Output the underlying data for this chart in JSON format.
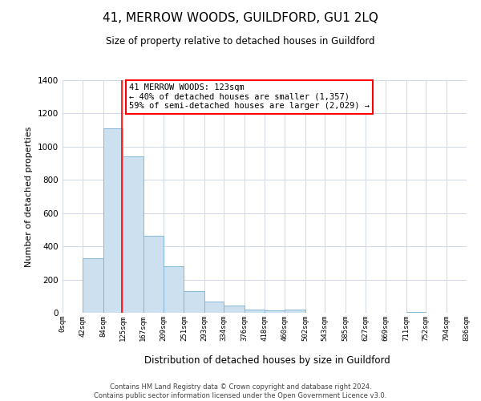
{
  "title": "41, MERROW WOODS, GUILDFORD, GU1 2LQ",
  "subtitle": "Size of property relative to detached houses in Guildford",
  "xlabel": "Distribution of detached houses by size in Guildford",
  "ylabel": "Number of detached properties",
  "bar_left_edges": [
    0,
    42,
    84,
    125,
    167,
    209,
    251,
    293,
    334,
    376,
    418,
    460,
    502,
    543,
    585,
    627,
    669,
    711,
    752,
    794
  ],
  "bar_widths": [
    42,
    42,
    41,
    42,
    42,
    42,
    42,
    41,
    42,
    42,
    42,
    42,
    41,
    42,
    42,
    42,
    42,
    41,
    42,
    42
  ],
  "bar_heights": [
    0,
    330,
    1110,
    940,
    465,
    282,
    128,
    68,
    43,
    18,
    15,
    20,
    0,
    0,
    0,
    0,
    0,
    5,
    0,
    0
  ],
  "tick_labels": [
    "0sqm",
    "42sqm",
    "84sqm",
    "125sqm",
    "167sqm",
    "209sqm",
    "251sqm",
    "293sqm",
    "334sqm",
    "376sqm",
    "418sqm",
    "460sqm",
    "502sqm",
    "543sqm",
    "585sqm",
    "627sqm",
    "669sqm",
    "711sqm",
    "752sqm",
    "794sqm",
    "836sqm"
  ],
  "tick_positions": [
    0,
    42,
    84,
    125,
    167,
    209,
    251,
    293,
    334,
    376,
    418,
    460,
    502,
    543,
    585,
    627,
    669,
    711,
    752,
    794,
    836
  ],
  "bar_color": "#cce0f0",
  "bar_edge_color": "#7ab0d4",
  "property_line_x": 123,
  "annotation_text_line1": "41 MERROW WOODS: 123sqm",
  "annotation_text_line2": "← 40% of detached houses are smaller (1,357)",
  "annotation_text_line3": "59% of semi-detached houses are larger (2,029) →",
  "annotation_box_color": "white",
  "annotation_box_edge_color": "red",
  "property_line_color": "red",
  "ylim": [
    0,
    1400
  ],
  "xlim": [
    0,
    836
  ],
  "yticks": [
    0,
    200,
    400,
    600,
    800,
    1000,
    1200,
    1400
  ],
  "footer_line1": "Contains HM Land Registry data © Crown copyright and database right 2024.",
  "footer_line2": "Contains public sector information licensed under the Open Government Licence v3.0.",
  "bg_color": "#ffffff",
  "grid_color": "#d0d8e8"
}
